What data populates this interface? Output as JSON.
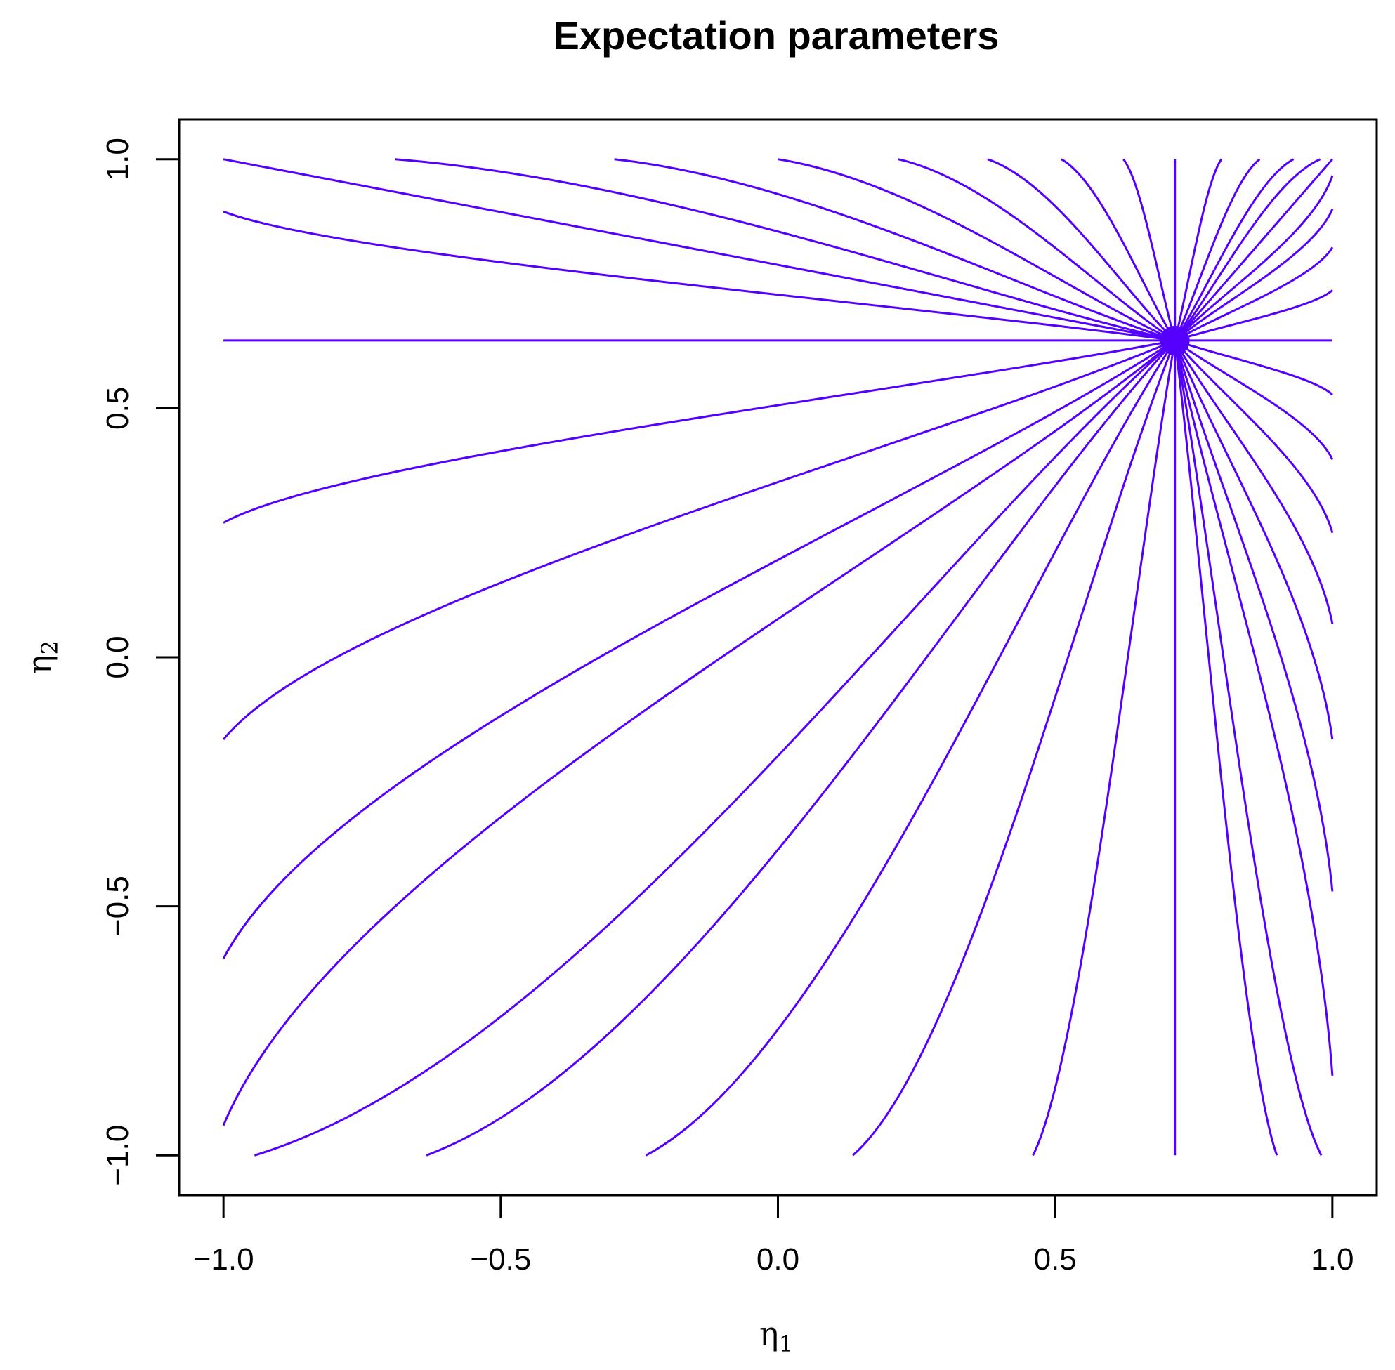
{
  "chart_data": {
    "type": "line",
    "title": "Expectation parameters",
    "xlabel": {
      "base": "η",
      "sub": "1"
    },
    "ylabel": {
      "base": "η",
      "sub": "2"
    },
    "xlim": [
      -1.08,
      1.08
    ],
    "ylim": [
      -1.08,
      1.08
    ],
    "x_ticks": [
      -1.0,
      -0.5,
      0.0,
      0.5,
      1.0
    ],
    "x_tick_labels": [
      "−1.0",
      "−0.5",
      "0.0",
      "0.5",
      "1.0"
    ],
    "y_ticks": [
      -1.0,
      -0.5,
      0.0,
      0.5,
      1.0
    ],
    "y_tick_labels": [
      "−1.0",
      "−0.5",
      "0.0",
      "0.5",
      "1.0"
    ],
    "line_color": "#5500ff",
    "center": {
      "x": 0.716,
      "y": 0.636
    },
    "curve_endpoints": [
      {
        "x": -1.0,
        "y": 1.0
      },
      {
        "x": -0.69,
        "y": 1.0
      },
      {
        "x": -0.295,
        "y": 1.0
      },
      {
        "x": 0.0,
        "y": 1.0
      },
      {
        "x": 0.217,
        "y": 1.0
      },
      {
        "x": 0.378,
        "y": 1.0
      },
      {
        "x": 0.511,
        "y": 1.0
      },
      {
        "x": 0.623,
        "y": 1.0
      },
      {
        "x": 0.716,
        "y": 1.0
      },
      {
        "x": 0.8,
        "y": 1.0
      },
      {
        "x": 0.869,
        "y": 1.0
      },
      {
        "x": 0.93,
        "y": 1.0
      },
      {
        "x": 0.978,
        "y": 1.0
      },
      {
        "x": 1.0,
        "y": 1.0
      },
      {
        "x": 1.0,
        "y": 0.967
      },
      {
        "x": 1.0,
        "y": 0.9
      },
      {
        "x": 1.0,
        "y": 0.823
      },
      {
        "x": 1.0,
        "y": 0.737
      },
      {
        "x": 1.0,
        "y": 0.636
      },
      {
        "x": 1.0,
        "y": 0.527
      },
      {
        "x": 1.0,
        "y": 0.397
      },
      {
        "x": 1.0,
        "y": 0.25
      },
      {
        "x": 1.0,
        "y": 0.067
      },
      {
        "x": 1.0,
        "y": -0.165
      },
      {
        "x": 1.0,
        "y": -0.47
      },
      {
        "x": 1.0,
        "y": -0.84
      },
      {
        "x": 0.98,
        "y": -1.0
      },
      {
        "x": 0.9,
        "y": -1.0
      },
      {
        "x": 0.716,
        "y": -1.0
      },
      {
        "x": 0.46,
        "y": -1.0
      },
      {
        "x": 0.135,
        "y": -1.0
      },
      {
        "x": -0.238,
        "y": -1.0
      },
      {
        "x": -0.634,
        "y": -1.0
      },
      {
        "x": -0.944,
        "y": -1.0
      },
      {
        "x": -1.0,
        "y": -0.94
      },
      {
        "x": -1.0,
        "y": -0.605
      },
      {
        "x": -1.0,
        "y": -0.165
      },
      {
        "x": -1.0,
        "y": 0.27
      },
      {
        "x": -1.0,
        "y": 0.636
      },
      {
        "x": -1.0,
        "y": 0.895
      }
    ]
  }
}
